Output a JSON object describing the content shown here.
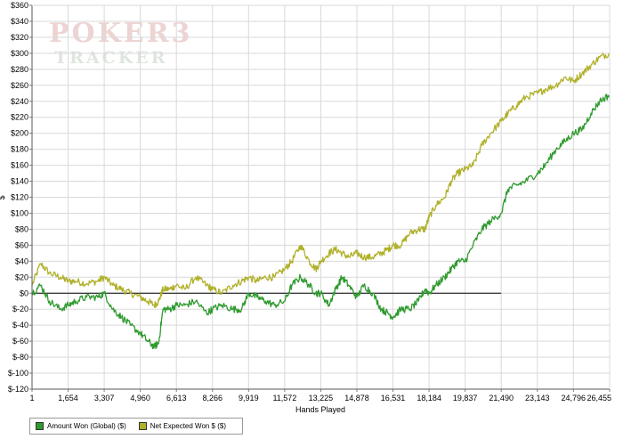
{
  "watermark": {
    "line1": "POKER3",
    "line2": "TRACKER"
  },
  "chart_data": {
    "type": "line",
    "title": "",
    "xlabel": "Hands Played",
    "ylabel": "$",
    "xlim": [
      1,
      26455
    ],
    "ylim": [
      -120,
      360
    ],
    "yticks": [
      360,
      340,
      320,
      300,
      280,
      260,
      240,
      220,
      200,
      180,
      160,
      140,
      120,
      100,
      80,
      60,
      40,
      20,
      0,
      -20,
      -40,
      -60,
      -80,
      -100,
      -120
    ],
    "ytick_labels": [
      "$360",
      "$340",
      "$320",
      "$300",
      "$280",
      "$260",
      "$240",
      "$220",
      "$200",
      "$180",
      "$160",
      "$140",
      "$120",
      "$100",
      "$80",
      "$60",
      "$40",
      "$20",
      "$0",
      "$-20",
      "$-40",
      "$-60",
      "$-80",
      "$-100",
      "$-120"
    ],
    "xticks": [
      1,
      1654,
      3307,
      4960,
      6613,
      8266,
      9919,
      11572,
      13225,
      14878,
      16531,
      18184,
      19837,
      21490,
      23143,
      24796,
      26455
    ],
    "xtick_labels": [
      "1",
      "1,654",
      "3,307",
      "4,960",
      "6,613",
      "8,266",
      "9,919",
      "11,572",
      "13,225",
      "14,878",
      "16,531",
      "18,184",
      "19,837",
      "21,490",
      "23,143",
      "24,796",
      "26,455"
    ],
    "grid": true,
    "zero_line_end": 21490,
    "legend_position": "bottom-left",
    "series": [
      {
        "name": "Amount Won (Global) ($)",
        "color": "#2f9a2f",
        "x": [
          1,
          400,
          800,
          1300,
          1654,
          2000,
          2500,
          3000,
          3307,
          3700,
          4100,
          4500,
          4960,
          5300,
          5600,
          5800,
          6000,
          6300,
          6613,
          7000,
          7500,
          8000,
          8266,
          8700,
          9200,
          9600,
          9919,
          10300,
          10700,
          11100,
          11572,
          11900,
          12300,
          12700,
          13000,
          13225,
          13600,
          13900,
          14200,
          14500,
          14878,
          15200,
          15600,
          16000,
          16300,
          16531,
          16900,
          17300,
          17700,
          18000,
          18184,
          18500,
          18900,
          19200,
          19500,
          19837,
          20200,
          20600,
          21000,
          21490,
          21800,
          22200,
          22600,
          23143,
          23500,
          24000,
          24400,
          24796,
          25200,
          25600,
          26000,
          26455
        ],
        "y": [
          0,
          10,
          -10,
          -20,
          -15,
          -10,
          -5,
          -5,
          0,
          -20,
          -30,
          -40,
          -50,
          -60,
          -67,
          -62,
          -20,
          -20,
          -15,
          -15,
          -10,
          -25,
          -20,
          -15,
          -20,
          -20,
          0,
          -5,
          -10,
          -15,
          -10,
          10,
          20,
          10,
          0,
          0,
          -15,
          5,
          20,
          10,
          -5,
          10,
          0,
          -20,
          -25,
          -30,
          -20,
          -20,
          -10,
          5,
          0,
          10,
          20,
          30,
          40,
          40,
          60,
          80,
          90,
          100,
          130,
          135,
          140,
          150,
          160,
          180,
          190,
          200,
          205,
          225,
          240,
          248
        ]
      },
      {
        "name": "Net Expected Won $ ($)",
        "color": "#b0b02a",
        "x": [
          1,
          400,
          800,
          1300,
          1654,
          2000,
          2500,
          3000,
          3307,
          3700,
          4100,
          4500,
          4960,
          5300,
          5600,
          5800,
          6000,
          6300,
          6613,
          7000,
          7500,
          8000,
          8266,
          8700,
          9200,
          9600,
          9919,
          10300,
          10700,
          11100,
          11572,
          11900,
          12300,
          12700,
          13000,
          13225,
          13600,
          13900,
          14200,
          14500,
          14878,
          15200,
          15600,
          16000,
          16300,
          16531,
          16900,
          17300,
          17700,
          18000,
          18184,
          18500,
          18900,
          19200,
          19500,
          19837,
          20200,
          20600,
          21000,
          21490,
          21800,
          22200,
          22600,
          23143,
          23500,
          24000,
          24400,
          24796,
          25200,
          25600,
          26000,
          26455
        ],
        "y": [
          10,
          37,
          25,
          20,
          15,
          15,
          12,
          15,
          20,
          10,
          5,
          0,
          -5,
          -10,
          -15,
          -10,
          5,
          5,
          10,
          5,
          20,
          10,
          5,
          0,
          10,
          15,
          20,
          15,
          20,
          20,
          30,
          40,
          60,
          40,
          30,
          40,
          50,
          55,
          50,
          45,
          50,
          45,
          45,
          50,
          55,
          60,
          60,
          75,
          80,
          80,
          95,
          110,
          120,
          140,
          150,
          155,
          160,
          185,
          200,
          215,
          225,
          235,
          245,
          250,
          255,
          260,
          270,
          265,
          275,
          285,
          295,
          300
        ]
      }
    ]
  }
}
